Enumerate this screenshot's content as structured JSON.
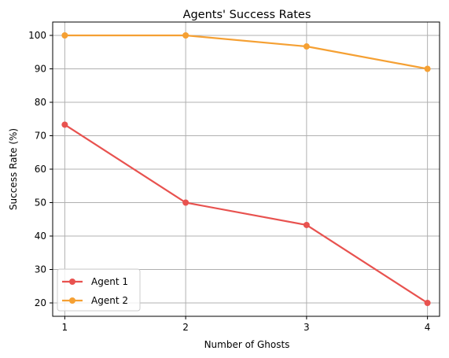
{
  "chart_data": {
    "type": "line",
    "title": "Agents' Success Rates",
    "xlabel": "Number of Ghosts",
    "ylabel": "Success Rate (%)",
    "x": [
      1,
      2,
      3,
      4
    ],
    "xticks": [
      1,
      2,
      3,
      4
    ],
    "yticks": [
      20,
      30,
      40,
      50,
      60,
      70,
      80,
      90,
      100
    ],
    "xlim": [
      0.9,
      4.1
    ],
    "ylim": [
      16,
      104
    ],
    "grid": true,
    "legend": "lower-left",
    "series": [
      {
        "name": "Agent 1",
        "color": "#e8524f",
        "values": [
          73.3,
          50.0,
          43.3,
          20.0
        ]
      },
      {
        "name": "Agent 2",
        "color": "#f5a033",
        "values": [
          100.0,
          100.0,
          96.7,
          90.0
        ]
      }
    ]
  }
}
